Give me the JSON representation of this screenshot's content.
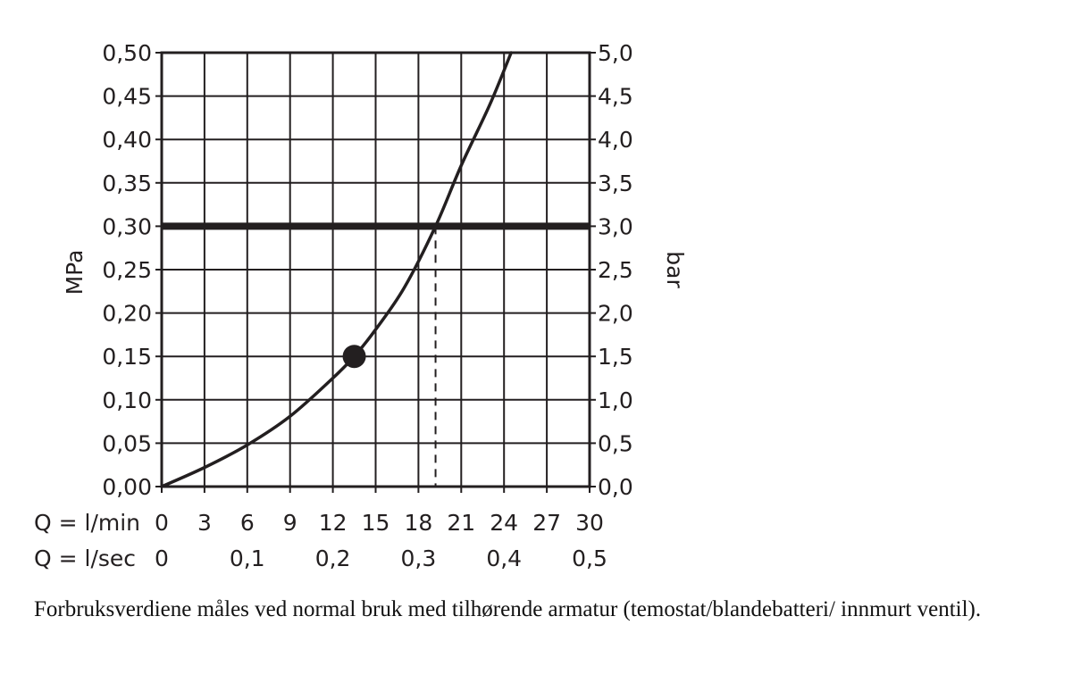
{
  "chart_data": {
    "type": "line",
    "ylabel_left": "MPa",
    "ylabel_right": "bar",
    "x_row1_label": "Q = l/min",
    "x_row2_label": "Q = l/sec",
    "x_ticks_lmin": [
      "0",
      "3",
      "6",
      "9",
      "12",
      "15",
      "18",
      "21",
      "24",
      "27",
      "30"
    ],
    "x_ticks_lsec": [
      "0",
      "0,1",
      "0,2",
      "0,3",
      "0,4",
      "0,5"
    ],
    "x_ticks_lsec_values": [
      0,
      6,
      12,
      18,
      24,
      30
    ],
    "y_ticks_mpa": [
      "0,00",
      "0,05",
      "0,10",
      "0,15",
      "0,20",
      "0,25",
      "0,30",
      "0,35",
      "0,40",
      "0,45",
      "0,50"
    ],
    "y_ticks_bar": [
      "0,0",
      "0,5",
      "1,0",
      "1,5",
      "2,0",
      "2,5",
      "3,0",
      "3,5",
      "4,0",
      "4,5",
      "5,0"
    ],
    "xlim": [
      0,
      30
    ],
    "ylim": [
      0,
      0.5
    ],
    "grid": true,
    "series": [
      {
        "x": [
          0,
          3,
          6,
          9,
          12,
          13.5,
          15,
          17,
          19.2,
          21,
          23,
          24.5
        ],
        "y": [
          0,
          0.022,
          0.048,
          0.081,
          0.125,
          0.15,
          0.181,
          0.229,
          0.3,
          0.37,
          0.44,
          0.5
        ]
      }
    ],
    "reference_line_mpa": 0.3,
    "reference_drop_x_lmin": 19.2,
    "marker_point": {
      "x": 13.5,
      "y": 0.15
    }
  },
  "caption": "Forbruksverdiene måles ved normal bruk med tilhørende armatur (temostat/blandebatteri/ innmurt ventil).",
  "colors": {
    "ink": "#231f20"
  }
}
